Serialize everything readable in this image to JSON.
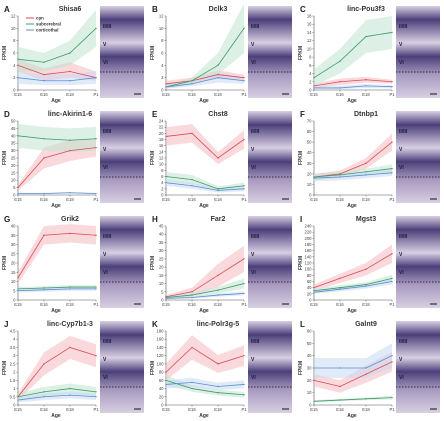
{
  "colors": {
    "cpn": "#d94a5a",
    "cpn_fill": "#f4b9c0",
    "subcerebral": "#3f9a6a",
    "subcerebral_fill": "#bfe3cf",
    "corticothal": "#5b8fd3",
    "corticothal_fill": "#c6d8f2",
    "tissue_dark": "#4b3f7a",
    "tissue_light": "#d8cfe2"
  },
  "legend": [
    "cpn",
    "subcerebral",
    "corticothal"
  ],
  "xlabel": "Age",
  "ylabel": "FPKM",
  "layer_labels": [
    "II/III",
    "V",
    "VI"
  ],
  "chart_data": [
    {
      "panel": "A",
      "title": "Shisa6",
      "type": "line",
      "x": [
        "E15",
        "E16",
        "E18",
        "P1"
      ],
      "ylim": [
        0,
        12
      ],
      "yticks": [
        0,
        2,
        4,
        6,
        8,
        10,
        12
      ],
      "series": [
        {
          "name": "cpn",
          "values": [
            4,
            2.5,
            3,
            2
          ],
          "lo": [
            3,
            1.5,
            2,
            1.5
          ],
          "hi": [
            5,
            3.5,
            4.5,
            3
          ]
        },
        {
          "name": "subcerebral",
          "values": [
            5,
            4.5,
            6,
            10
          ],
          "lo": [
            3,
            3,
            4,
            7
          ],
          "hi": [
            7,
            6,
            8,
            13
          ]
        },
        {
          "name": "corticothal",
          "values": [
            2,
            1.5,
            1.5,
            2
          ],
          "lo": [
            1,
            0.8,
            0.8,
            1
          ],
          "hi": [
            3,
            2.5,
            2.5,
            3
          ]
        }
      ]
    },
    {
      "panel": "B",
      "title": "Dclk3",
      "type": "line",
      "x": [
        "E15",
        "E16",
        "E18",
        "P1"
      ],
      "ylim": [
        0,
        12
      ],
      "yticks": [
        0,
        2,
        4,
        6,
        8,
        10,
        12
      ],
      "series": [
        {
          "name": "cpn",
          "values": [
            1,
            1.5,
            2.5,
            2
          ],
          "lo": [
            0.5,
            1,
            1.8,
            1.5
          ],
          "hi": [
            1.5,
            2,
            3.2,
            2.5
          ]
        },
        {
          "name": "subcerebral",
          "values": [
            0.5,
            1.5,
            4,
            10
          ],
          "lo": [
            0.2,
            1,
            2.5,
            6
          ],
          "hi": [
            0.8,
            2,
            6,
            14
          ]
        },
        {
          "name": "corticothal",
          "values": [
            0.5,
            1,
            2,
            1.5
          ],
          "lo": [
            0.2,
            0.6,
            1.2,
            1
          ],
          "hi": [
            0.8,
            1.4,
            2.8,
            2
          ]
        }
      ]
    },
    {
      "panel": "C",
      "title": "linc-Pou3f3",
      "type": "line",
      "x": [
        "E15",
        "E16",
        "E18",
        "P1"
      ],
      "ylim": [
        0,
        18
      ],
      "yticks": [
        0,
        2,
        4,
        6,
        8,
        10,
        12,
        14,
        16,
        18
      ],
      "series": [
        {
          "name": "cpn",
          "values": [
            1,
            2,
            2.5,
            2
          ],
          "lo": [
            0.5,
            1.2,
            1.8,
            1.5
          ],
          "hi": [
            1.5,
            2.8,
            3.2,
            2.5
          ]
        },
        {
          "name": "subcerebral",
          "values": [
            3,
            7,
            13,
            14
          ],
          "lo": [
            1,
            4,
            9,
            10
          ],
          "hi": [
            5,
            10,
            17,
            18
          ]
        },
        {
          "name": "corticothal",
          "values": [
            0.5,
            0.5,
            1,
            0.8
          ],
          "lo": [
            0.2,
            0.2,
            0.5,
            0.4
          ],
          "hi": [
            0.8,
            1,
            1.5,
            1.2
          ]
        }
      ]
    },
    {
      "panel": "D",
      "title": "linc-Akirin1-6",
      "type": "line",
      "x": [
        "E15",
        "E16",
        "E18",
        "P1"
      ],
      "ylim": [
        0,
        50
      ],
      "yticks": [
        0,
        5,
        10,
        15,
        20,
        25,
        30,
        35,
        40,
        45,
        50
      ],
      "series": [
        {
          "name": "cpn",
          "values": [
            5,
            25,
            30,
            32
          ],
          "lo": [
            3,
            18,
            23,
            26
          ],
          "hi": [
            7,
            32,
            37,
            38
          ]
        },
        {
          "name": "subcerebral",
          "values": [
            40,
            38,
            37,
            38
          ],
          "lo": [
            32,
            30,
            29,
            30
          ],
          "hi": [
            48,
            46,
            45,
            46
          ]
        },
        {
          "name": "corticothal",
          "values": [
            1,
            1,
            1.5,
            1
          ],
          "lo": [
            0.5,
            0.5,
            1,
            0.5
          ],
          "hi": [
            1.5,
            1.5,
            2,
            1.5
          ]
        }
      ]
    },
    {
      "panel": "E",
      "title": "Chst8",
      "type": "line",
      "x": [
        "E15",
        "E16",
        "E18",
        "P1"
      ],
      "ylim": [
        0,
        24
      ],
      "yticks": [
        0,
        2,
        4,
        6,
        8,
        10,
        12,
        14,
        16,
        18,
        20,
        22,
        24
      ],
      "series": [
        {
          "name": "cpn",
          "values": [
            19,
            20,
            12,
            18
          ],
          "lo": [
            16,
            17,
            10,
            15
          ],
          "hi": [
            22,
            23,
            14,
            21
          ]
        },
        {
          "name": "subcerebral",
          "values": [
            6,
            5,
            2,
            3
          ],
          "lo": [
            4.5,
            3.5,
            1.2,
            2
          ],
          "hi": [
            7.5,
            6.5,
            2.8,
            4
          ]
        },
        {
          "name": "corticothal",
          "values": [
            4,
            3,
            1.5,
            2
          ],
          "lo": [
            3,
            2,
            0.8,
            1.2
          ],
          "hi": [
            5,
            4,
            2.2,
            2.8
          ]
        }
      ]
    },
    {
      "panel": "F",
      "title": "Dtnbp1",
      "type": "line",
      "x": [
        "E15",
        "E16",
        "E18",
        "P1"
      ],
      "ylim": [
        0,
        70
      ],
      "yticks": [
        0,
        10,
        20,
        30,
        40,
        50,
        60,
        70
      ],
      "series": [
        {
          "name": "cpn",
          "values": [
            17,
            20,
            30,
            50
          ],
          "lo": [
            14,
            17,
            25,
            42
          ],
          "hi": [
            20,
            23,
            35,
            58
          ]
        },
        {
          "name": "subcerebral",
          "values": [
            17,
            19,
            22,
            25
          ],
          "lo": [
            14,
            16,
            19,
            21
          ],
          "hi": [
            20,
            22,
            25,
            29
          ]
        },
        {
          "name": "corticothal",
          "values": [
            16,
            17,
            19,
            21
          ],
          "lo": [
            13,
            14,
            16,
            18
          ],
          "hi": [
            19,
            20,
            22,
            24
          ]
        }
      ]
    },
    {
      "panel": "G",
      "title": "Grik2",
      "type": "line",
      "x": [
        "E15",
        "E16",
        "E18",
        "P1"
      ],
      "ylim": [
        0,
        40
      ],
      "yticks": [
        0,
        5,
        10,
        15,
        20,
        25,
        30,
        35,
        40
      ],
      "series": [
        {
          "name": "cpn",
          "values": [
            12,
            35,
            36,
            35
          ],
          "lo": [
            9,
            30,
            31,
            30
          ],
          "hi": [
            15,
            40,
            41,
            40
          ]
        },
        {
          "name": "subcerebral",
          "values": [
            6,
            6.5,
            7,
            7
          ],
          "lo": [
            5,
            5.5,
            6,
            6
          ],
          "hi": [
            7,
            7.5,
            8,
            8
          ]
        },
        {
          "name": "corticothal",
          "values": [
            5,
            5.5,
            6,
            6
          ],
          "lo": [
            4,
            4.5,
            5,
            5
          ],
          "hi": [
            6,
            6.5,
            7,
            7
          ]
        }
      ]
    },
    {
      "panel": "H",
      "title": "Far2",
      "type": "line",
      "x": [
        "E15",
        "E16",
        "E18",
        "P1"
      ],
      "ylim": [
        0,
        45
      ],
      "yticks": [
        0,
        5,
        10,
        15,
        20,
        25,
        30,
        35,
        40,
        45
      ],
      "series": [
        {
          "name": "cpn",
          "values": [
            2,
            5,
            15,
            25
          ],
          "lo": [
            1,
            2.5,
            8,
            17
          ],
          "hi": [
            3,
            7.5,
            22,
            33
          ]
        },
        {
          "name": "subcerebral",
          "values": [
            1.5,
            3,
            6,
            10
          ],
          "lo": [
            0.8,
            1.8,
            4,
            7
          ],
          "hi": [
            2.2,
            4.2,
            8,
            13
          ]
        },
        {
          "name": "corticothal",
          "values": [
            1,
            1.5,
            3,
            4
          ],
          "lo": [
            0.5,
            0.8,
            2,
            2.8
          ],
          "hi": [
            1.5,
            2.2,
            4,
            5.2
          ]
        }
      ]
    },
    {
      "panel": "I",
      "title": "Mgst3",
      "type": "line",
      "x": [
        "E15",
        "E16",
        "E18",
        "P1"
      ],
      "ylim": [
        0,
        240
      ],
      "yticks": [
        0,
        20,
        40,
        60,
        80,
        100,
        120,
        140,
        160,
        180,
        200,
        220,
        240
      ],
      "series": [
        {
          "name": "cpn",
          "values": [
            40,
            70,
            100,
            150
          ],
          "lo": [
            30,
            55,
            80,
            120
          ],
          "hi": [
            50,
            85,
            120,
            180
          ]
        },
        {
          "name": "subcerebral",
          "values": [
            30,
            40,
            50,
            70
          ],
          "lo": [
            24,
            32,
            42,
            58
          ],
          "hi": [
            36,
            48,
            58,
            82
          ]
        },
        {
          "name": "corticothal",
          "values": [
            25,
            35,
            45,
            60
          ],
          "lo": [
            20,
            28,
            37,
            50
          ],
          "hi": [
            30,
            42,
            53,
            70
          ]
        }
      ]
    },
    {
      "panel": "J",
      "title": "linc-Cyp7b1-3",
      "type": "line",
      "x": [
        "E15",
        "E16",
        "E18",
        "P1"
      ],
      "ylim": [
        0,
        4.5
      ],
      "yticks": [
        0,
        0.5,
        1,
        1.5,
        2,
        2.5,
        3,
        3.5,
        4,
        4.5
      ],
      "series": [
        {
          "name": "cpn",
          "values": [
            0.5,
            2.5,
            3.5,
            3
          ],
          "lo": [
            0.3,
            1.8,
            2.8,
            2.3
          ],
          "hi": [
            0.7,
            3.2,
            4.2,
            3.7
          ]
        },
        {
          "name": "subcerebral",
          "values": [
            0.5,
            0.8,
            1,
            0.8
          ],
          "lo": [
            0.3,
            0.5,
            0.7,
            0.5
          ],
          "hi": [
            0.7,
            1.1,
            1.3,
            1.1
          ]
        },
        {
          "name": "corticothal",
          "values": [
            0.3,
            0.5,
            0.6,
            0.5
          ],
          "lo": [
            0.15,
            0.3,
            0.4,
            0.3
          ],
          "hi": [
            0.45,
            0.7,
            0.8,
            0.7
          ]
        }
      ]
    },
    {
      "panel": "K",
      "title": "linc-Polr3g-5",
      "type": "line",
      "x": [
        "E15",
        "E16",
        "E18",
        "P1"
      ],
      "ylim": [
        0,
        180
      ],
      "yticks": [
        0,
        20,
        40,
        60,
        80,
        100,
        120,
        140,
        160,
        180
      ],
      "series": [
        {
          "name": "cpn",
          "values": [
            80,
            140,
            100,
            120
          ],
          "lo": [
            60,
            110,
            78,
            95
          ],
          "hi": [
            100,
            170,
            122,
            145
          ]
        },
        {
          "name": "subcerebral",
          "values": [
            60,
            40,
            30,
            25
          ],
          "lo": [
            48,
            32,
            23,
            18
          ],
          "hi": [
            72,
            48,
            37,
            32
          ]
        },
        {
          "name": "corticothal",
          "values": [
            50,
            55,
            45,
            50
          ],
          "lo": [
            40,
            44,
            36,
            40
          ],
          "hi": [
            60,
            66,
            54,
            60
          ]
        }
      ]
    },
    {
      "panel": "L",
      "title": "Galnt9",
      "type": "line",
      "x": [
        "E15",
        "E16",
        "E18",
        "P1"
      ],
      "ylim": [
        0,
        60
      ],
      "yticks": [
        0,
        10,
        20,
        30,
        40,
        50,
        60
      ],
      "series": [
        {
          "name": "cpn",
          "values": [
            20,
            15,
            25,
            35
          ],
          "lo": [
            15,
            10,
            18,
            27
          ],
          "hi": [
            25,
            20,
            32,
            43
          ]
        },
        {
          "name": "subcerebral",
          "values": [
            3,
            4,
            5,
            6
          ],
          "lo": [
            2,
            3,
            4,
            4.5
          ],
          "hi": [
            4,
            5,
            6,
            7.5
          ]
        },
        {
          "name": "corticothal",
          "values": [
            30,
            30,
            30,
            40
          ],
          "lo": [
            22,
            22,
            22,
            30
          ],
          "hi": [
            38,
            38,
            38,
            50
          ]
        }
      ]
    }
  ]
}
